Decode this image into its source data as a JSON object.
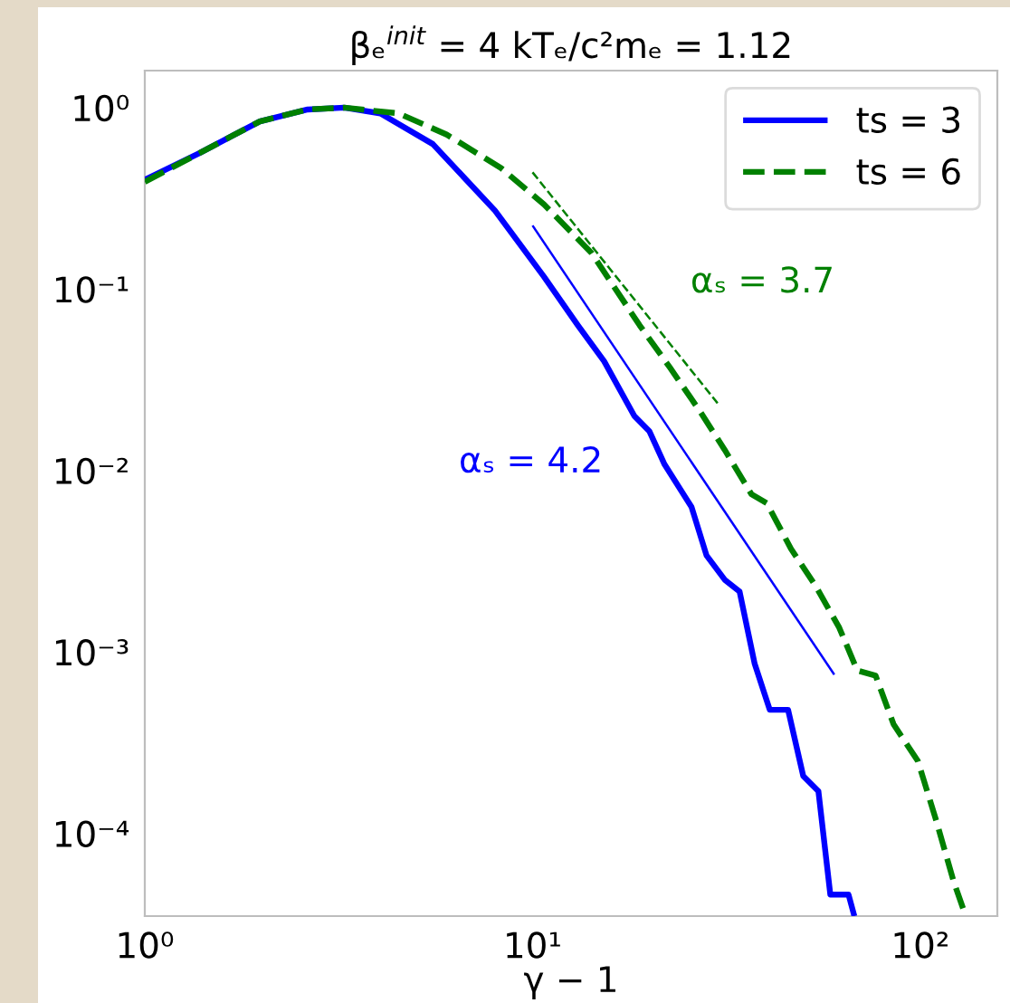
{
  "chart_data": {
    "type": "line",
    "title": "βₑ$^{init}$ = 4 kTₑ/c²mₑ = 1.12",
    "xlabel": "γ − 1",
    "log": "xy",
    "grid": false,
    "legend": "top right",
    "xlim": [
      1,
      158
    ],
    "ylim": [
      3.5e-05,
      1.6
    ],
    "xticks": [
      {
        "value": 1,
        "label": "10⁰"
      },
      {
        "value": 10,
        "label": "10¹"
      },
      {
        "value": 100,
        "label": "10²"
      }
    ],
    "yticks": [
      {
        "value": 0.0001,
        "label": "10⁻⁴"
      },
      {
        "value": 0.001,
        "label": "10⁻³"
      },
      {
        "value": 0.01,
        "label": "10⁻²"
      },
      {
        "value": 0.1,
        "label": "10⁻¹"
      },
      {
        "value": 1,
        "label": "10⁰"
      }
    ],
    "series": [
      {
        "name": "ts = 3",
        "color": "#0000ff",
        "line_style": "solid",
        "x": [
          1.0,
          1.38,
          1.98,
          2.63,
          3.27,
          4.05,
          5.53,
          8.0,
          10.7,
          13.1,
          15.3,
          18.3,
          20.0,
          21.9,
          25.7,
          28.1,
          31.3,
          34.2,
          37.4,
          40.9,
          45.6,
          49.9,
          54.6,
          58.6,
          65.3,
          67.6
        ],
        "values": [
          0.4,
          0.56,
          0.84,
          0.977,
          1.0,
          0.93,
          0.63,
          0.271,
          0.117,
          0.063,
          0.04,
          0.02,
          0.0165,
          0.0108,
          0.0063,
          0.0034,
          0.0025,
          0.00215,
          0.00086,
          0.00048,
          0.00048,
          0.000207,
          0.000171,
          4.6e-05,
          4.6e-05,
          3.5e-05
        ]
      },
      {
        "name": "ts = 6",
        "color": "#008000",
        "line_style": "dashed",
        "x": [
          1.0,
          1.38,
          1.98,
          2.63,
          3.27,
          4.51,
          6.01,
          8.3,
          10.7,
          14.2,
          18.9,
          22.6,
          27.1,
          31.3,
          36.7,
          40.2,
          46.4,
          53.6,
          61.8,
          68.8,
          76.7,
          85.3,
          98.6,
          110,
          122,
          131
        ],
        "values": [
          0.39,
          0.56,
          0.84,
          0.977,
          1.0,
          0.93,
          0.71,
          0.464,
          0.293,
          0.158,
          0.063,
          0.037,
          0.021,
          0.013,
          0.0074,
          0.0066,
          0.0037,
          0.00233,
          0.00136,
          0.00079,
          0.00074,
          0.0004,
          0.00025,
          0.000117,
          5.4e-05,
          3.5e-05
        ]
      },
      {
        "type": "line",
        "color": "#008000",
        "line_style": "dashed",
        "x": [
          10,
          30
        ],
        "values": [
          0.44,
          0.0235
        ]
      },
      {
        "type": "line",
        "color": "#0000ff",
        "line_style": "solid",
        "x": [
          10,
          60
        ],
        "values": [
          0.224,
          0.00075
        ]
      }
    ],
    "annotations": [
      "αₛ = 3.7",
      "αₛ = 4.2"
    ]
  }
}
